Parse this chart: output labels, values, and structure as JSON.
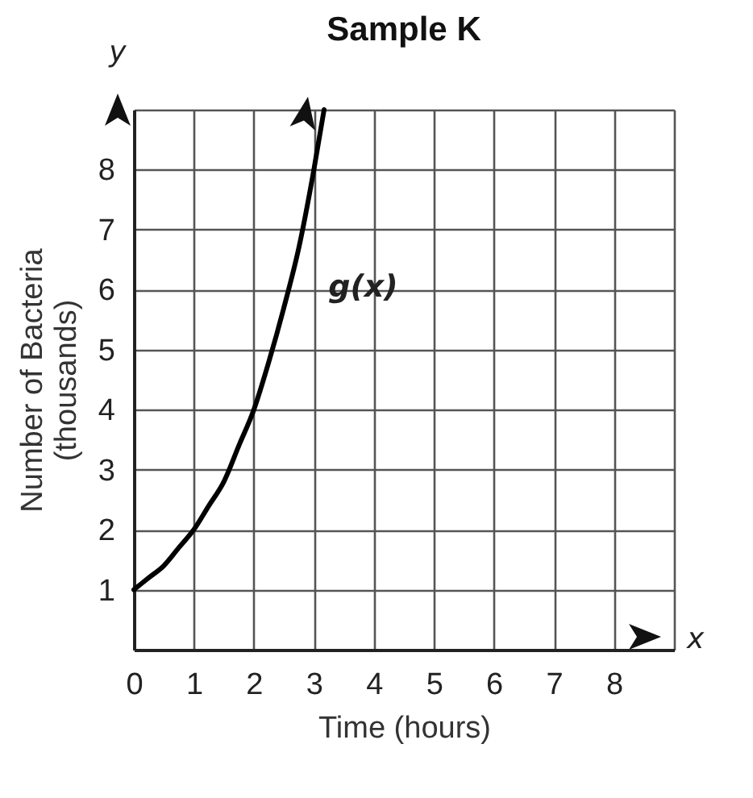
{
  "chart_data": {
    "type": "line",
    "title": "Sample K",
    "xlabel": "Time (hours)",
    "ylabel": "Number of Bacteria\n(thousands)",
    "x": [
      0,
      0.25,
      0.5,
      0.75,
      1,
      1.25,
      1.5,
      1.75,
      2,
      2.25,
      2.5,
      2.75,
      3,
      3.17
    ],
    "series": [
      {
        "color": "#000000",
        "values": [
          1,
          1.2,
          1.4,
          1.7,
          2,
          2.4,
          2.8,
          3.4,
          4,
          4.8,
          5.7,
          6.7,
          8,
          9
        ]
      }
    ],
    "xlim": [
      0,
      9
    ],
    "ylim": [
      0,
      9
    ],
    "xticks": [
      0,
      1,
      2,
      3,
      4,
      5,
      6,
      7,
      8,
      {
        "value": 9,
        "label": null
      }
    ],
    "yticks": [
      1,
      2,
      3,
      4,
      5,
      6,
      7,
      8,
      {
        "value": 9,
        "label": null
      }
    ],
    "grid": true,
    "marker": "none",
    "line_style": "solid",
    "annotations": [
      "y",
      "x",
      "g(x)"
    ]
  }
}
